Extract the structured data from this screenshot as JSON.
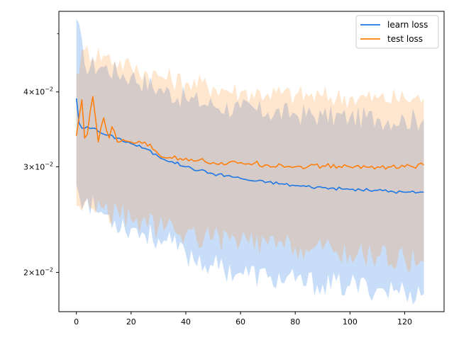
{
  "chart_data": {
    "type": "line",
    "title": "",
    "xlabel": "",
    "ylabel": "",
    "xlim": [
      -6.4,
      134.4
    ],
    "ylim": [
      0.0172,
      0.0545
    ],
    "yscale": "log",
    "x_ticks": [
      0,
      20,
      40,
      60,
      80,
      100,
      120
    ],
    "x_tick_labels": [
      "0",
      "20",
      "40",
      "60",
      "80",
      "100",
      "120"
    ],
    "y_ticks": [
      0.02,
      0.03,
      0.04
    ],
    "y_tick_labels": [
      {
        "mantissa": "2",
        "exponent": "−2"
      },
      {
        "mantissa": "3",
        "exponent": "−2"
      },
      {
        "mantissa": "4",
        "exponent": "−2"
      }
    ],
    "y_tick_base_text": "×10",
    "grid": false,
    "legend_position": "top-right",
    "series": [
      {
        "name": "learn loss",
        "color": "#1f77e4",
        "band_color": "#1f77e4",
        "key_points": [
          [
            0,
            0.039
          ],
          [
            1,
            0.0355
          ],
          [
            2,
            0.0348
          ],
          [
            4,
            0.035
          ],
          [
            6,
            0.0348
          ],
          [
            10,
            0.034
          ],
          [
            15,
            0.0335
          ],
          [
            20,
            0.0328
          ],
          [
            25,
            0.0322
          ],
          [
            30,
            0.0312
          ],
          [
            35,
            0.0306
          ],
          [
            40,
            0.03
          ],
          [
            45,
            0.0296
          ],
          [
            50,
            0.0292
          ],
          [
            55,
            0.029
          ],
          [
            60,
            0.0287
          ],
          [
            65,
            0.0284
          ],
          [
            70,
            0.0283
          ],
          [
            75,
            0.0281
          ],
          [
            80,
            0.0279
          ],
          [
            90,
            0.0277
          ],
          [
            100,
            0.0275
          ],
          [
            110,
            0.0274
          ],
          [
            120,
            0.0272
          ],
          [
            127,
            0.0272
          ]
        ],
        "upper_key_points": [
          [
            0,
            0.053
          ],
          [
            3,
            0.0445
          ],
          [
            10,
            0.044
          ],
          [
            20,
            0.0425
          ],
          [
            30,
            0.0405
          ],
          [
            40,
            0.039
          ],
          [
            50,
            0.038
          ],
          [
            60,
            0.0375
          ],
          [
            70,
            0.037
          ],
          [
            80,
            0.0368
          ],
          [
            90,
            0.0365
          ],
          [
            100,
            0.0363
          ],
          [
            110,
            0.0362
          ],
          [
            120,
            0.036
          ],
          [
            127,
            0.036
          ]
        ],
        "lower_key_points": [
          [
            0,
            0.028
          ],
          [
            3,
            0.0262
          ],
          [
            10,
            0.025
          ],
          [
            20,
            0.0237
          ],
          [
            30,
            0.0228
          ],
          [
            40,
            0.0215
          ],
          [
            50,
            0.0205
          ],
          [
            60,
            0.02
          ],
          [
            70,
            0.0196
          ],
          [
            80,
            0.0193
          ],
          [
            90,
            0.0191
          ],
          [
            100,
            0.019
          ],
          [
            110,
            0.0188
          ],
          [
            120,
            0.0186
          ],
          [
            127,
            0.0184
          ]
        ]
      },
      {
        "name": "test loss",
        "color": "#ff7f0e",
        "band_color": "#ff9a3c",
        "key_points": [
          [
            0,
            0.0338
          ],
          [
            2,
            0.0388
          ],
          [
            3,
            0.0335
          ],
          [
            4,
            0.034
          ],
          [
            6,
            0.0393
          ],
          [
            8,
            0.033
          ],
          [
            10,
            0.0362
          ],
          [
            12,
            0.0335
          ],
          [
            13,
            0.035
          ],
          [
            15,
            0.033
          ],
          [
            20,
            0.033
          ],
          [
            25,
            0.033
          ],
          [
            30,
            0.0315
          ],
          [
            35,
            0.031
          ],
          [
            40,
            0.031
          ],
          [
            45,
            0.0308
          ],
          [
            50,
            0.0305
          ],
          [
            55,
            0.0303
          ],
          [
            60,
            0.0305
          ],
          [
            65,
            0.0304
          ],
          [
            70,
            0.0302
          ],
          [
            75,
            0.0302
          ],
          [
            80,
            0.03
          ],
          [
            90,
            0.0301
          ],
          [
            100,
            0.03
          ],
          [
            110,
            0.03
          ],
          [
            120,
            0.03
          ],
          [
            127,
            0.0302
          ]
        ],
        "upper_key_points": [
          [
            0,
            0.043
          ],
          [
            3,
            0.047
          ],
          [
            10,
            0.046
          ],
          [
            20,
            0.044
          ],
          [
            30,
            0.0425
          ],
          [
            40,
            0.0415
          ],
          [
            50,
            0.0408
          ],
          [
            60,
            0.04
          ],
          [
            70,
            0.0398
          ],
          [
            80,
            0.0395
          ],
          [
            90,
            0.0393
          ],
          [
            100,
            0.0392
          ],
          [
            110,
            0.039
          ],
          [
            120,
            0.039
          ],
          [
            127,
            0.039
          ]
        ],
        "lower_key_points": [
          [
            0,
            0.0258
          ],
          [
            3,
            0.026
          ],
          [
            10,
            0.0255
          ],
          [
            20,
            0.0245
          ],
          [
            30,
            0.0238
          ],
          [
            40,
            0.0232
          ],
          [
            50,
            0.0228
          ],
          [
            60,
            0.0225
          ],
          [
            70,
            0.0222
          ],
          [
            80,
            0.022
          ],
          [
            90,
            0.0218
          ],
          [
            100,
            0.0215
          ],
          [
            110,
            0.0213
          ],
          [
            120,
            0.021
          ],
          [
            127,
            0.0208
          ]
        ]
      }
    ]
  }
}
